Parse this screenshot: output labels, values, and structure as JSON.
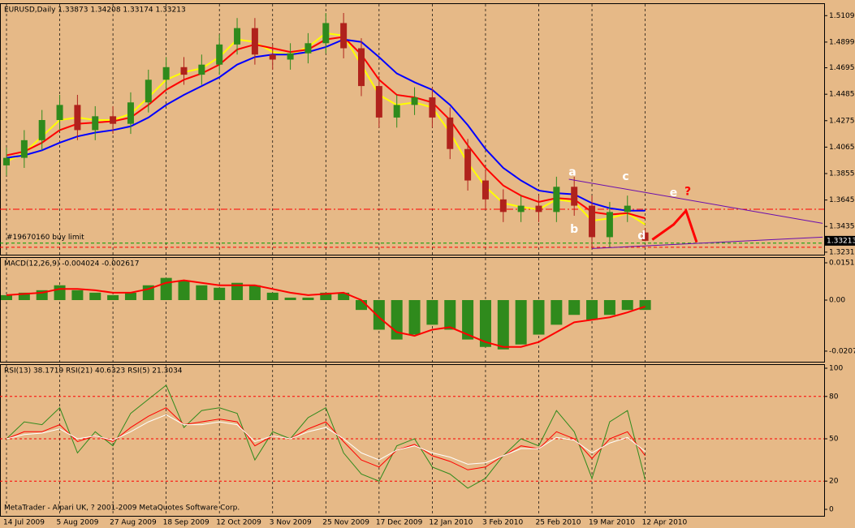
{
  "chart_data": [
    {
      "type": "candlestick",
      "title": "EURUSD,Daily  1.33873 1.34208 1.33174 1.33213",
      "categories": [
        "14 Jul 2009",
        null,
        null,
        "5 Aug 2009",
        null,
        null,
        "27 Aug 2009",
        null,
        null,
        "18 Sep 2009",
        null,
        null,
        "12 Oct 2009",
        null,
        null,
        "3 Nov 2009",
        null,
        null,
        "25 Nov 2009",
        null,
        null,
        "17 Dec 2009",
        null,
        null,
        "12 Jan 2010",
        null,
        null,
        "3 Feb 2010",
        null,
        null,
        "25 Feb 2010",
        null,
        null,
        "19 Mar 2010",
        null,
        null,
        "12 Apr 2010"
      ],
      "open": [
        1.392,
        1.398,
        1.412,
        1.428,
        1.44,
        1.42,
        1.431,
        1.425,
        1.442,
        1.46,
        1.47,
        1.464,
        1.472,
        1.488,
        1.501,
        1.48,
        1.476,
        1.481,
        1.489,
        1.505,
        1.485,
        1.455,
        1.43,
        1.44,
        1.446,
        1.43,
        1.405,
        1.38,
        1.365,
        1.355,
        1.36,
        1.355,
        1.375,
        1.36,
        1.335,
        1.355,
        1.33873
      ],
      "high": [
        1.406,
        1.42,
        1.436,
        1.448,
        1.448,
        1.439,
        1.439,
        1.45,
        1.468,
        1.478,
        1.478,
        1.48,
        1.496,
        1.509,
        1.509,
        1.488,
        1.489,
        1.497,
        1.513,
        1.513,
        1.493,
        1.463,
        1.448,
        1.454,
        1.454,
        1.438,
        1.413,
        1.388,
        1.373,
        1.368,
        1.368,
        1.383,
        1.383,
        1.368,
        1.363,
        1.368,
        1.34208
      ],
      "low": [
        1.384,
        1.39,
        1.404,
        1.42,
        1.412,
        1.412,
        1.417,
        1.417,
        1.434,
        1.452,
        1.456,
        1.456,
        1.464,
        1.48,
        1.472,
        1.468,
        1.468,
        1.473,
        1.481,
        1.477,
        1.447,
        1.422,
        1.422,
        1.432,
        1.422,
        1.397,
        1.372,
        1.357,
        1.347,
        1.347,
        1.347,
        1.347,
        1.352,
        1.327,
        1.327,
        1.347,
        1.33174
      ],
      "close": [
        1.398,
        1.412,
        1.428,
        1.44,
        1.42,
        1.431,
        1.425,
        1.442,
        1.46,
        1.47,
        1.464,
        1.472,
        1.488,
        1.501,
        1.48,
        1.476,
        1.481,
        1.489,
        1.505,
        1.485,
        1.455,
        1.43,
        1.44,
        1.446,
        1.43,
        1.405,
        1.38,
        1.365,
        1.355,
        1.36,
        1.355,
        1.375,
        1.36,
        1.335,
        1.355,
        1.36,
        1.33213
      ],
      "up_color": "#2f8a1c",
      "down_color": "#b0221c",
      "lines": [
        {
          "color": "#ffff00",
          "values": [
            1.395,
            1.402,
            1.415,
            1.428,
            1.43,
            1.428,
            1.428,
            1.433,
            1.446,
            1.46,
            1.466,
            1.469,
            1.478,
            1.492,
            1.49,
            1.482,
            1.48,
            1.486,
            1.497,
            1.495,
            1.472,
            1.448,
            1.44,
            1.442,
            1.438,
            1.418,
            1.394,
            1.375,
            1.362,
            1.359,
            1.357,
            1.365,
            1.363,
            1.348,
            1.35,
            1.354,
            1.345
          ]
        },
        {
          "color": "#ff0000",
          "values": [
            1.4,
            1.403,
            1.41,
            1.42,
            1.425,
            1.426,
            1.427,
            1.43,
            1.44,
            1.452,
            1.46,
            1.465,
            1.472,
            1.484,
            1.488,
            1.485,
            1.482,
            1.484,
            1.492,
            1.494,
            1.48,
            1.46,
            1.448,
            1.446,
            1.442,
            1.428,
            1.408,
            1.39,
            1.376,
            1.368,
            1.363,
            1.366,
            1.365,
            1.355,
            1.353,
            1.354,
            1.35
          ]
        },
        {
          "color": "#0000ff",
          "values": [
            1.398,
            1.4,
            1.404,
            1.41,
            1.415,
            1.418,
            1.42,
            1.423,
            1.43,
            1.44,
            1.448,
            1.455,
            1.462,
            1.472,
            1.478,
            1.48,
            1.48,
            1.482,
            1.486,
            1.492,
            1.49,
            1.478,
            1.465,
            1.458,
            1.452,
            1.44,
            1.424,
            1.405,
            1.39,
            1.38,
            1.372,
            1.37,
            1.369,
            1.362,
            1.358,
            1.356,
            1.356
          ]
        }
      ],
      "levels": [
        {
          "value": 1.3572,
          "color": "#ff0000",
          "style": "dashdot"
        },
        {
          "value": 1.3303,
          "color": "#00a000",
          "style": "dashed",
          "label": "#19670160 buy limit"
        },
        {
          "value": 1.327,
          "color": "#ff0000",
          "style": "dashed"
        }
      ],
      "trendlines": [
        {
          "color": "#6a0dad",
          "x": [
            31.7,
            46
          ],
          "y": [
            1.381,
            1.346
          ]
        },
        {
          "color": "#6a0dad",
          "x": [
            33,
            46
          ],
          "y": [
            1.326,
            1.335
          ]
        },
        {
          "color": "#ff0000",
          "x": [
            36.4,
            37.6,
            38.3,
            38.9
          ],
          "y": [
            1.333,
            1.345,
            1.356,
            1.331
          ]
        }
      ],
      "annotations": [
        {
          "text": "a",
          "x": 31.9,
          "y": 1.3865,
          "color": "#ffffff"
        },
        {
          "text": "b",
          "x": 32,
          "y": 1.341,
          "color": "#ffffff"
        },
        {
          "text": "c",
          "x": 34.9,
          "y": 1.383,
          "color": "#ffffff"
        },
        {
          "text": "d",
          "x": 35.8,
          "y": 1.336,
          "color": "#ffffff"
        },
        {
          "text": "e",
          "x": 37.6,
          "y": 1.37,
          "color": "#ffffff"
        },
        {
          "text": "?",
          "x": 38.4,
          "y": 1.371,
          "color": "#ff0000"
        }
      ],
      "price_label": {
        "value": 1.33213,
        "label": "1.33213"
      },
      "ylim": [
        1.3211,
        1.5201
      ],
      "yticks": [
        {
          "value": 1.5109,
          "label": "1.51090"
        },
        {
          "value": 1.4899,
          "label": "1.48990"
        },
        {
          "value": 1.4695,
          "label": "1.46950"
        },
        {
          "value": 1.4485,
          "label": "1.44850"
        },
        {
          "value": 1.4275,
          "label": "1.42750"
        },
        {
          "value": 1.4065,
          "label": "1.40650"
        },
        {
          "value": 1.3855,
          "label": "1.38550"
        },
        {
          "value": 1.3645,
          "label": "1.36450"
        },
        {
          "value": 1.3435,
          "label": "1.34350"
        },
        {
          "value": 1.3231,
          "label": "1.32310"
        }
      ]
    },
    {
      "type": "macd",
      "title": "MACD(12,26,9) -0.004024 -0.002617",
      "histogram": {
        "color": "#2f8a1c",
        "values": [
          0.002,
          0.003,
          0.004,
          0.006,
          0.004,
          0.003,
          0.002,
          0.003,
          0.006,
          0.009,
          0.008,
          0.006,
          0.005,
          0.007,
          0.006,
          0.003,
          0.001,
          0.001,
          0.003,
          0.003,
          -0.004,
          -0.012,
          -0.016,
          -0.014,
          -0.01,
          -0.012,
          -0.016,
          -0.019,
          -0.02,
          -0.018,
          -0.014,
          -0.01,
          -0.006,
          -0.008,
          -0.006,
          -0.004,
          -0.004
        ]
      },
      "signal": {
        "color": "#ff0000",
        "values": [
          0.002,
          0.0025,
          0.003,
          0.0045,
          0.0045,
          0.004,
          0.003,
          0.003,
          0.0045,
          0.007,
          0.008,
          0.007,
          0.006,
          0.006,
          0.006,
          0.0045,
          0.003,
          0.002,
          0.0025,
          0.003,
          0,
          -0.007,
          -0.013,
          -0.0145,
          -0.012,
          -0.011,
          -0.014,
          -0.017,
          -0.019,
          -0.019,
          -0.017,
          -0.013,
          -0.009,
          -0.008,
          -0.007,
          -0.005,
          -0.0026
        ]
      },
      "ylim": [
        -0.025,
        0.0171
      ],
      "yticks": [
        {
          "value": 0.01512,
          "label": "0.01512"
        },
        {
          "value": 0,
          "label": "0.00"
        },
        -0.0207
      ]
    },
    {
      "type": "line",
      "title": "RSI(13) 38.1719  RSI(21) 40.6323  RSI(5) 21.3034",
      "series": [
        {
          "color": "#2f8a1c",
          "values": [
            50,
            62,
            60,
            72,
            40,
            55,
            45,
            68,
            78,
            88,
            58,
            70,
            72,
            68,
            35,
            55,
            50,
            65,
            72,
            40,
            25,
            20,
            45,
            50,
            30,
            25,
            15,
            22,
            38,
            50,
            45,
            70,
            55,
            22,
            62,
            70,
            21
          ]
        },
        {
          "color": "#ff0000",
          "values": [
            50,
            55,
            55,
            60,
            48,
            52,
            48,
            58,
            66,
            72,
            60,
            62,
            64,
            62,
            45,
            52,
            50,
            57,
            62,
            48,
            35,
            30,
            42,
            46,
            38,
            34,
            28,
            30,
            38,
            45,
            43,
            55,
            50,
            36,
            50,
            55,
            38
          ]
        },
        {
          "color": "#ffffff",
          "values": [
            50,
            53,
            54,
            57,
            50,
            52,
            49,
            55,
            62,
            67,
            60,
            60,
            62,
            60,
            48,
            52,
            50,
            55,
            58,
            50,
            40,
            35,
            42,
            45,
            40,
            37,
            32,
            33,
            38,
            43,
            43,
            51,
            49,
            40,
            47,
            51,
            41
          ]
        }
      ],
      "levels": [
        80,
        50,
        20
      ],
      "ylim": [
        -4.6,
        102.3
      ],
      "yticks": [
        100,
        80,
        50,
        20,
        0
      ]
    }
  ],
  "footer": "MetaTrader - Alpari UK, ? 2001-2009 MetaQuotes Software Corp."
}
